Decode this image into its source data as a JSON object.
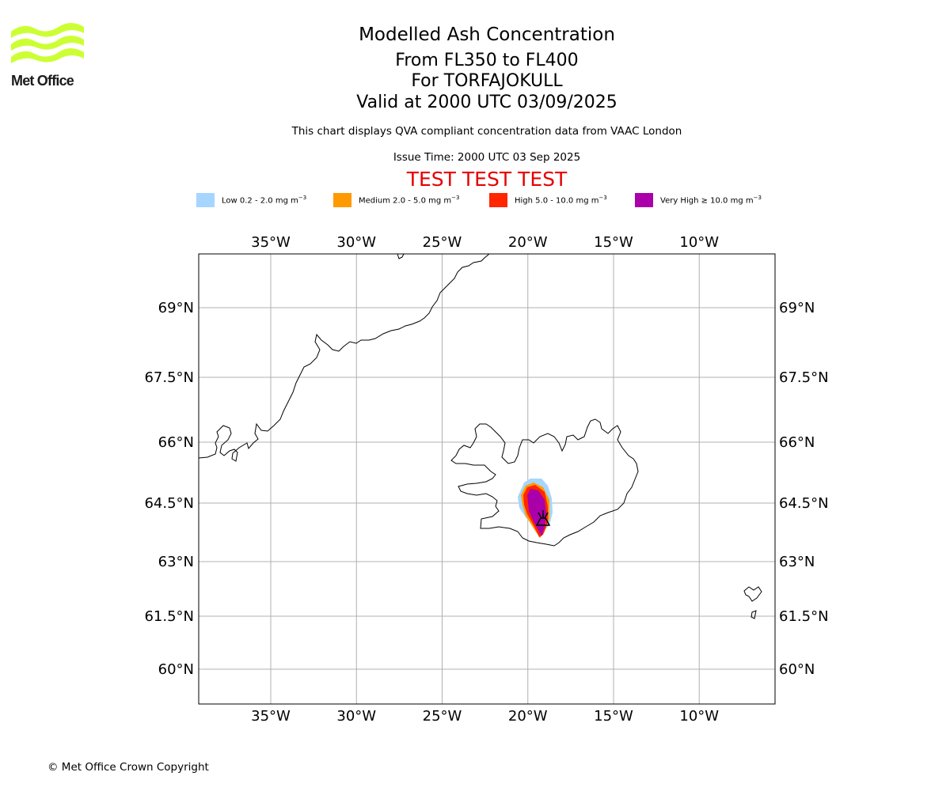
{
  "branding": {
    "logo_text": "Met Office",
    "logo_color": "#ccff33"
  },
  "titles": {
    "main": "Modelled Ash Concentration",
    "levels": "From FL350 to FL400",
    "volcano": "For TORFAJOKULL",
    "valid": "Valid at 2000 UTC 03/09/2025"
  },
  "notes": {
    "compliance": "This chart displays QVA compliant concentration data from VAAC London",
    "issue_time": "Issue Time: 2000 UTC 03 Sep 2025"
  },
  "banner": "TEST TEST TEST",
  "legend": [
    {
      "label": "Low 0.2 - 2.0 mg m",
      "sup": "−3",
      "color": "#a6d5ff"
    },
    {
      "label": "Medium 2.0 - 5.0 mg m",
      "sup": "−3",
      "color": "#ff9900"
    },
    {
      "label": "High 5.0 - 10.0 mg m",
      "sup": "−3",
      "color": "#ff2600"
    },
    {
      "label": "Very High  ≥  10.0 mg m",
      "sup": "−3",
      "color": "#aa00aa"
    }
  ],
  "map": {
    "lon_range": [
      -39.5,
      -5.5
    ],
    "lat_range": [
      59.2,
      70.2
    ],
    "lon_ticks": [
      {
        "value": -35,
        "label": "35°W"
      },
      {
        "value": -30,
        "label": "30°W"
      },
      {
        "value": -25,
        "label": "25°W"
      },
      {
        "value": -20,
        "label": "20°W"
      },
      {
        "value": -15,
        "label": "15°W"
      },
      {
        "value": -10,
        "label": "10°W"
      }
    ],
    "lat_ticks": [
      {
        "value": 60,
        "label": "60°N"
      },
      {
        "value": 61.5,
        "label": "61.5°N"
      },
      {
        "value": 63,
        "label": "63°N"
      },
      {
        "value": 64.5,
        "label": "64.5°N"
      },
      {
        "value": 66,
        "label": "66°N"
      },
      {
        "value": 67.5,
        "label": "67.5°N"
      },
      {
        "value": 69,
        "label": "69°N"
      }
    ],
    "grid": true,
    "volcano": {
      "name": "TORFAJOKULL",
      "lon": -19.1,
      "lat": 63.9,
      "marker": "volcano-icon"
    }
  },
  "copyright": "© Met Office Crown Copyright"
}
